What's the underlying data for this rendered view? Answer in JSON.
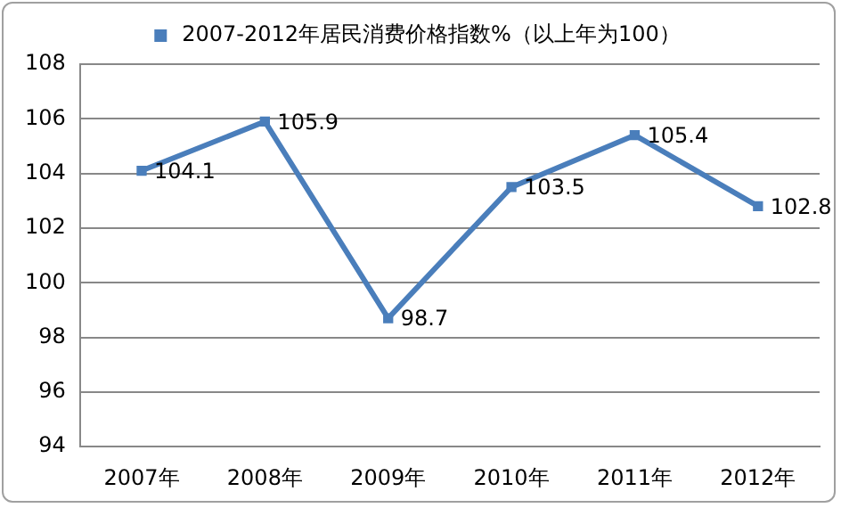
{
  "chart_data": {
    "type": "line",
    "categories": [
      "2007年",
      "2008年",
      "2009年",
      "2010年",
      "2011年",
      "2012年"
    ],
    "series": [
      {
        "name": "2007-2012年居民消费价格指数%（以上年为100）",
        "color": "#4a7ebb",
        "values": [
          104.1,
          105.9,
          98.7,
          103.5,
          105.4,
          102.8
        ]
      }
    ],
    "ylim": [
      94,
      108
    ],
    "yticks": [
      94,
      96,
      98,
      100,
      102,
      104,
      106,
      108
    ],
    "grid": "y",
    "legend": "top",
    "marker": "square",
    "line_style": "solid",
    "data_labels": true
  }
}
